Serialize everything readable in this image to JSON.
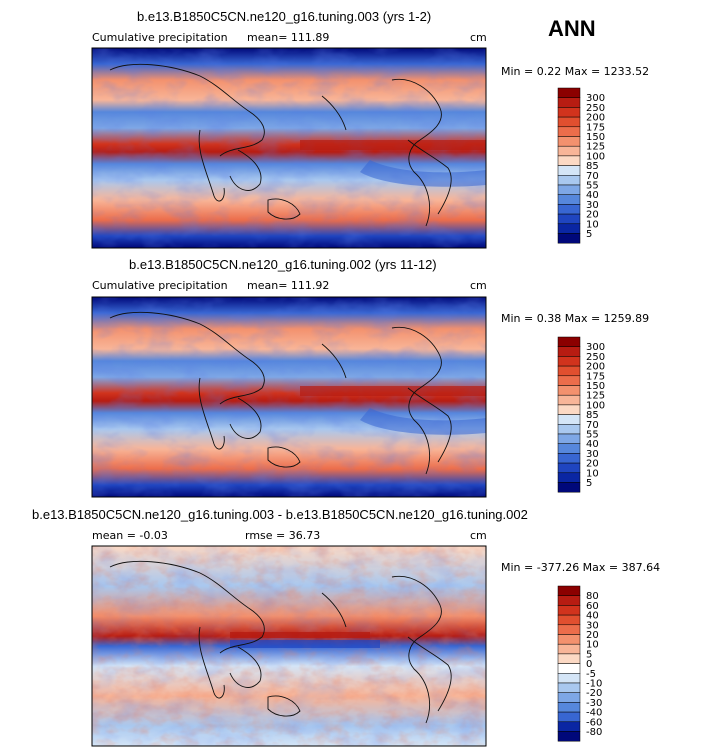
{
  "season_label": "ANN",
  "chart_data": [
    {
      "type": "heatmap",
      "title": "b.e13.B1850C5CN.ne120_g16.tuning.003 (yrs 1-2)",
      "left_label": "Cumulative precipitation",
      "mean_text": "mean= 111.89",
      "units": "cm",
      "minmax_text": "Min =    0.22 Max = 1233.52",
      "min": 0.22,
      "max": 1233.52,
      "levels": [
        "300",
        "250",
        "200",
        "175",
        "150",
        "125",
        "100",
        "85",
        "70",
        "55",
        "40",
        "30",
        "20",
        "10",
        "5"
      ],
      "colors": [
        "#8b0000",
        "#b71c12",
        "#d1331d",
        "#e14f2f",
        "#ec6d4b",
        "#f3916e",
        "#f8b598",
        "#fcd9c4",
        "#d4e5f7",
        "#a9c8ef",
        "#7ea7e6",
        "#5687dc",
        "#3866d2",
        "#1f45c0",
        "#0a26a3",
        "#00087a"
      ]
    },
    {
      "type": "heatmap",
      "title": "b.e13.B1850C5CN.ne120_g16.tuning.002 (yrs 11-12)",
      "left_label": "Cumulative precipitation",
      "mean_text": "mean= 111.92",
      "units": "cm",
      "minmax_text": "Min =    0.38 Max = 1259.89",
      "min": 0.38,
      "max": 1259.89,
      "levels": [
        "300",
        "250",
        "200",
        "175",
        "150",
        "125",
        "100",
        "85",
        "70",
        "55",
        "40",
        "30",
        "20",
        "10",
        "5"
      ],
      "colors": [
        "#8b0000",
        "#b71c12",
        "#d1331d",
        "#e14f2f",
        "#ec6d4b",
        "#f3916e",
        "#f8b598",
        "#fcd9c4",
        "#d4e5f7",
        "#a9c8ef",
        "#7ea7e6",
        "#5687dc",
        "#3866d2",
        "#1f45c0",
        "#0a26a3",
        "#00087a"
      ]
    },
    {
      "type": "heatmap",
      "title": "b.e13.B1850C5CN.ne120_g16.tuning.003 - b.e13.B1850C5CN.ne120_g16.tuning.002",
      "mean_text": "mean =   -0.03",
      "rmse_text": "rmse =   36.73",
      "units": "cm",
      "minmax_text": "Min = -377.26 Max = 387.64",
      "min": -377.26,
      "max": 387.64,
      "levels": [
        "80",
        "60",
        "40",
        "30",
        "20",
        "10",
        "5",
        "0",
        "-5",
        "-10",
        "-20",
        "-30",
        "-40",
        "-60",
        "-80"
      ],
      "colors": [
        "#8b0000",
        "#b71c12",
        "#d1331d",
        "#e14f2f",
        "#ec6d4b",
        "#f3916e",
        "#f8b598",
        "#fcd9c4",
        "#ffffff",
        "#d4e5f7",
        "#a9c8ef",
        "#7ea7e6",
        "#5687dc",
        "#3866d2",
        "#0a26a3",
        "#00087a"
      ]
    }
  ]
}
